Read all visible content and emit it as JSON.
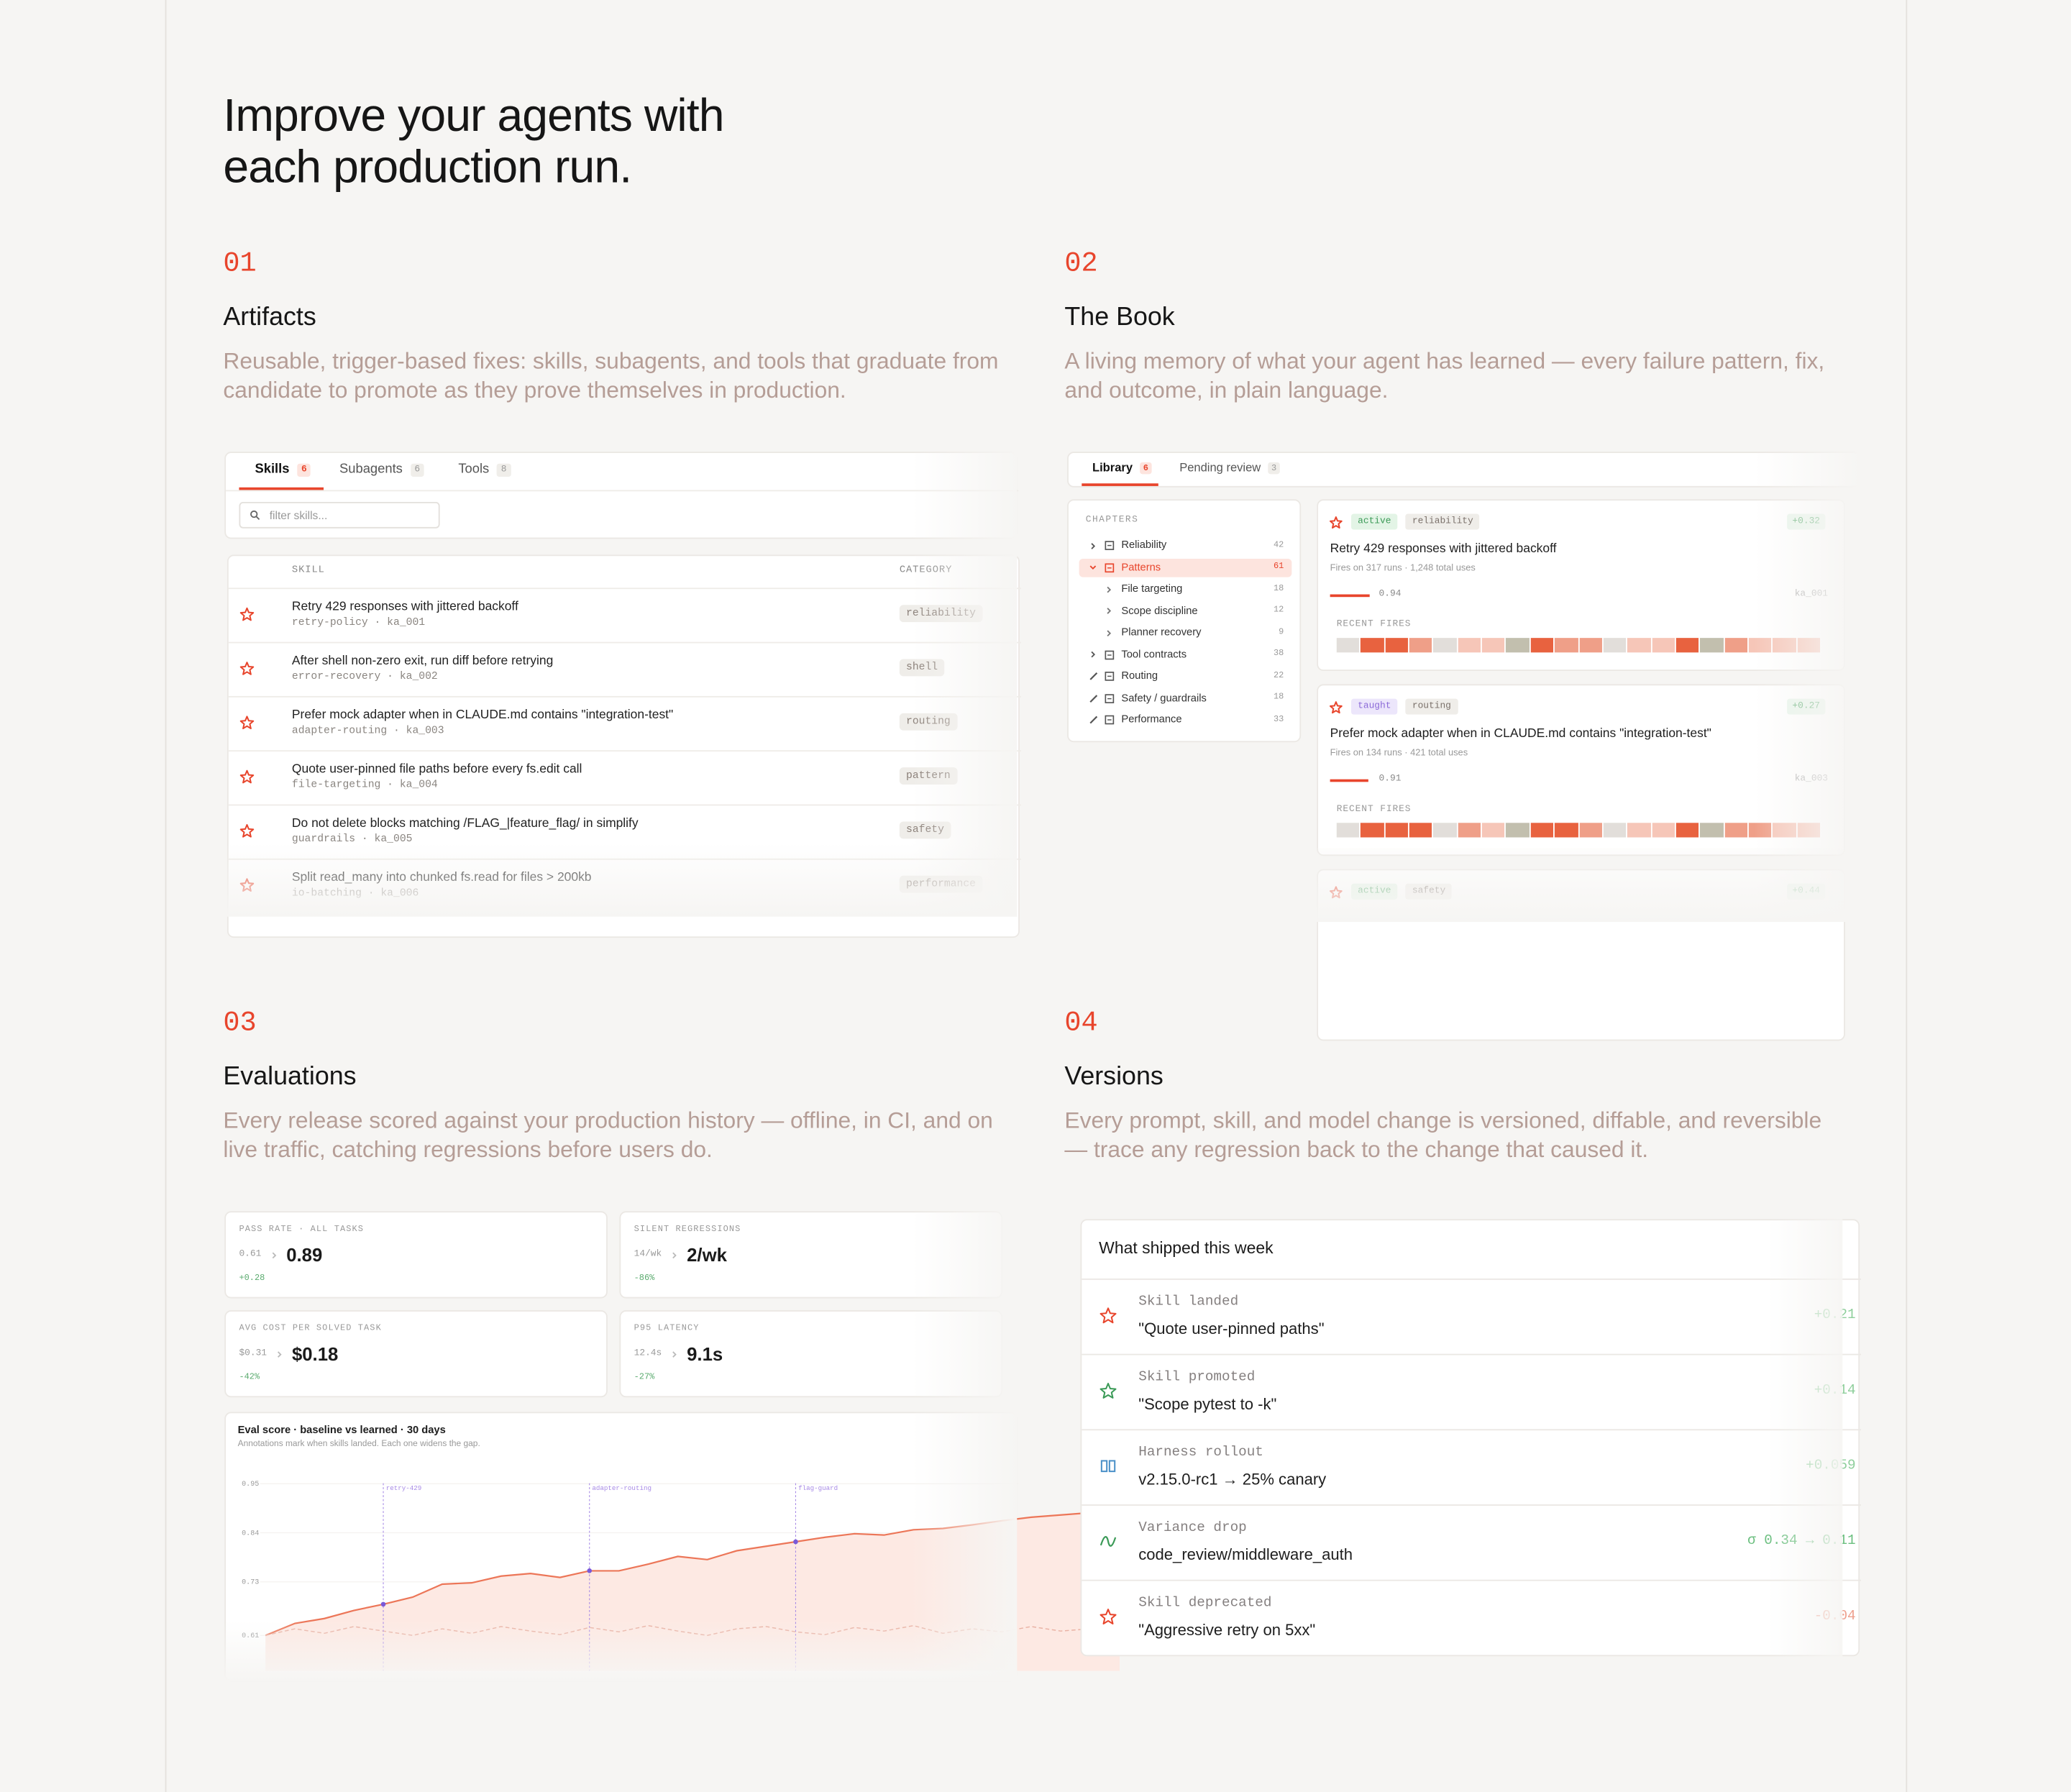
{
  "header": {
    "title": [
      "Improve your agents with",
      "each production run."
    ]
  },
  "sections": [
    {
      "number": "01",
      "title": "Artifacts",
      "description": "Reusable, trigger-based fixes: skills, subagents, and tools that graduate from candidate to promote as they prove themselves in production."
    },
    {
      "number": "02",
      "title": "The Book",
      "description": "A living memory of what your agent has learned — every failure pattern, fix, and outcome, in plain language."
    },
    {
      "number": "03",
      "title": "Evaluations",
      "description": "Every release scored against your production history — offline, in CI, and on live traffic, catching regressions before users do."
    },
    {
      "number": "04",
      "title": "Versions",
      "description": "Every prompt, skill, and model change is versioned, diffable, and reversible — trace any regression back to the change that caused it."
    }
  ],
  "artifacts": {
    "tabs": [
      {
        "label": "Skills",
        "count": 6
      },
      {
        "label": "Subagents",
        "count": 6
      },
      {
        "label": "Tools",
        "count": 8
      }
    ],
    "search_placeholder": "filter skills...",
    "columns": {
      "skill": "SKILL",
      "category": "CATEGORY"
    },
    "rows": [
      {
        "title": "Retry 429 responses with jittered backoff",
        "meta": "retry-policy · ka_001",
        "category": "reliability"
      },
      {
        "title": "After shell non-zero exit, run diff before retrying",
        "meta": "error-recovery · ka_002",
        "category": "shell"
      },
      {
        "title": "Prefer mock adapter when in CLAUDE.md contains \"integration-test\"",
        "meta": "adapter-routing · ka_003",
        "category": "routing"
      },
      {
        "title": "Quote user-pinned file paths before every fs.edit call",
        "meta": "file-targeting · ka_004",
        "category": "pattern"
      },
      {
        "title": "Do not delete blocks matching /FLAG_|feature_flag/ in simplify",
        "meta": "guardrails · ka_005",
        "category": "safety"
      },
      {
        "title": "Split read_many into chunked fs.read for files > 200kb",
        "meta": "io-batching · ka_006",
        "category": "performance"
      }
    ]
  },
  "book": {
    "tabs": [
      {
        "label": "Library",
        "count": 6
      },
      {
        "label": "Pending review",
        "count": 3
      }
    ],
    "chapters_heading": "CHAPTERS",
    "chapters": [
      {
        "label": "Reliability",
        "count": 42,
        "level": 0,
        "icon": "closed"
      },
      {
        "label": "Patterns",
        "count": 61,
        "level": 0,
        "icon": "open",
        "active": true
      },
      {
        "label": "File targeting",
        "count": 18,
        "level": 1,
        "icon": "closed"
      },
      {
        "label": "Scope discipline",
        "count": 12,
        "level": 1,
        "icon": "closed"
      },
      {
        "label": "Planner recovery",
        "count": 9,
        "level": 1,
        "icon": "closed"
      },
      {
        "label": "Tool contracts",
        "count": 38,
        "level": 0,
        "icon": "closed"
      },
      {
        "label": "Routing",
        "count": 22,
        "level": 0,
        "icon": "edit"
      },
      {
        "label": "Safety / guardrails",
        "count": 18,
        "level": 0,
        "icon": "edit"
      },
      {
        "label": "Performance",
        "count": 33,
        "level": 0,
        "icon": "edit"
      }
    ],
    "fire_colors": [
      "#e2deda",
      "#f6c6b8",
      "#ef9f88",
      "#e8623f",
      "#c2bfae"
    ],
    "cards": [
      {
        "status": "active",
        "status_color": "#3b9a57",
        "status_bg": "#e3f4e6",
        "category": "reliability",
        "delta": "+0.32",
        "title": "Retry 429 responses with jittered backoff",
        "meta": "Fires on 317 runs · 1,248 total uses",
        "score": 0.94,
        "id": "ka_001",
        "fires_label": "RECENT FIRES",
        "fires": [
          0,
          3,
          3,
          2,
          0,
          1,
          1,
          4,
          3,
          2,
          2,
          0,
          1,
          1,
          3,
          4,
          2,
          1,
          1,
          1
        ]
      },
      {
        "status": "taught",
        "status_color": "#8c6ad8",
        "status_bg": "#ece6fb",
        "category": "routing",
        "delta": "+0.27",
        "title": "Prefer mock adapter when in CLAUDE.md contains \"integration-test\"",
        "meta": "Fires on 134 runs · 421 total uses",
        "score": 0.91,
        "id": "ka_003",
        "fires_label": "RECENT FIRES",
        "fires": [
          0,
          3,
          3,
          3,
          0,
          2,
          1,
          4,
          3,
          3,
          2,
          0,
          1,
          1,
          3,
          4,
          2,
          2,
          1,
          1
        ]
      },
      {
        "status": "active",
        "status_color": "#3b9a57",
        "status_bg": "#e3f4e6",
        "category": "safety",
        "delta": "+0.44"
      }
    ]
  },
  "evaluations": {
    "metrics": [
      {
        "label": "PASS RATE · ALL TASKS",
        "before": "0.61",
        "value": "0.89",
        "delta": "+0.28"
      },
      {
        "label": "SILENT REGRESSIONS",
        "before": "14/wk",
        "value": "2/wk",
        "delta": "-86%"
      },
      {
        "label": "AVG COST PER SOLVED TASK",
        "before": "$0.31",
        "value": "$0.18",
        "delta": "-42%"
      },
      {
        "label": "P95 LATENCY",
        "before": "12.4s",
        "value": "9.1s",
        "delta": "-27%"
      }
    ],
    "chart": {
      "type": "line",
      "title": "Eval score · baseline vs learned · 30 days",
      "subtitle": "Annotations mark when skills landed. Each one widens the gap.",
      "x": [
        1,
        2,
        3,
        4,
        5,
        6,
        7,
        8,
        9,
        10,
        11,
        12,
        13,
        14,
        15,
        16,
        17,
        18,
        19,
        20,
        21,
        22,
        23,
        24,
        25,
        26,
        27,
        28,
        29,
        30
      ],
      "series": [
        {
          "color": "#ec7658",
          "dashed": false,
          "fill": "#fde9e3",
          "values": [
            0.61,
            0.637,
            0.648,
            0.666,
            0.68,
            0.696,
            0.725,
            0.728,
            0.743,
            0.749,
            0.74,
            0.755,
            0.755,
            0.77,
            0.787,
            0.78,
            0.8,
            0.81,
            0.82,
            0.83,
            0.838,
            0.835,
            0.847,
            0.85,
            0.858,
            0.867,
            0.875,
            0.88,
            0.885,
            0.89
          ]
        },
        {
          "color": "#e9b2a4",
          "dashed": true,
          "values": [
            0.61,
            0.625,
            0.615,
            0.63,
            0.62,
            0.61,
            0.625,
            0.615,
            0.63,
            0.62,
            0.612,
            0.628,
            0.618,
            0.632,
            0.62,
            0.61,
            0.625,
            0.63,
            0.618,
            0.612,
            0.628,
            0.62,
            0.632,
            0.615,
            0.625,
            0.618,
            0.63,
            0.62,
            0.625,
            0.615
          ]
        }
      ],
      "ylim": [
        0.59,
        0.96
      ],
      "yticks": [
        0.95,
        0.84,
        0.73,
        0.61
      ],
      "annotation_color": "#a88be6",
      "annotations": [
        {
          "x": 5,
          "label": "retry-429"
        },
        {
          "x": 12,
          "label": "adapter-routing"
        },
        {
          "x": 19,
          "label": "flag-guard"
        }
      ]
    }
  },
  "versions": {
    "title": "What shipped this week",
    "items": [
      {
        "kind": "Skill landed",
        "text": "\"Quote user-pinned paths\"",
        "delta": "+0.21",
        "icon": "star",
        "icon_color": "#e8452c",
        "delta_color": "#8fcf9c"
      },
      {
        "kind": "Skill promoted",
        "text": "\"Scope pytest to -k\"",
        "delta": "+0.14",
        "icon": "star",
        "icon_color": "#3b9a57",
        "delta_color": "#8fcf9c"
      },
      {
        "kind": "Harness rollout",
        "text": "v2.15.0-rc1 → 25% canary",
        "delta": "+0.059",
        "icon": "bars",
        "icon_color": "#4a90c8",
        "delta_color": "#8fcf9c"
      },
      {
        "kind": "Variance drop",
        "text": "code_review/middleware_auth",
        "delta": "σ 0.34 → 0.11",
        "icon": "wave",
        "icon_color": "#3b9a57",
        "delta_color": "#6bbf7f"
      },
      {
        "kind": "Skill deprecated",
        "text": "\"Aggressive retry on 5xx\"",
        "delta": "-0.04",
        "icon": "star",
        "icon_color": "#e8452c",
        "delta_color": "#eea08e"
      }
    ]
  }
}
